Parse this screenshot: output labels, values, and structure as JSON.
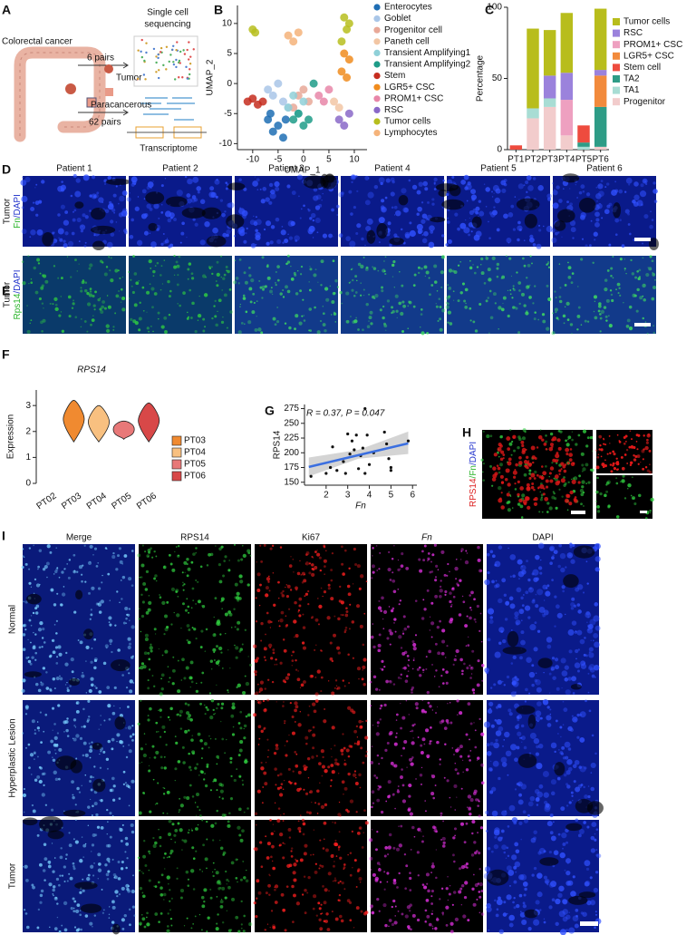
{
  "panel_labels": [
    "A",
    "B",
    "C",
    "D",
    "E",
    "F",
    "G",
    "H",
    "I"
  ],
  "panel_a": {
    "title": "Colorectal cancer",
    "sequencing": [
      "Single cell",
      "sequencing"
    ],
    "pairs_6": "6 pairs",
    "tumor": "Tumor",
    "paracancerous": "Paracancerous",
    "pairs_62": "62 pairs",
    "transcriptome": "Transcriptome"
  },
  "chart_data": [
    {
      "type": "scatter",
      "xlabel": "UMAP_1",
      "ylabel": "UMAP_2",
      "xlim": [
        -13,
        12.5
      ],
      "ylim": [
        -11,
        13
      ],
      "xticks": [
        -10,
        -5,
        0,
        5,
        10
      ],
      "yticks": [
        -10,
        -5,
        0,
        5,
        10
      ],
      "series": [
        {
          "name": "Enterocytes",
          "color": "#1f6eb4",
          "x": [
            -7,
            -6,
            -5,
            -4,
            -6.5,
            -3.5
          ],
          "y": [
            -6,
            -8,
            -7,
            -9,
            -5,
            -6
          ]
        },
        {
          "name": "Goblet",
          "color": "#a9c6e8",
          "x": [
            -6,
            -5,
            -4,
            -7,
            -3
          ],
          "y": [
            -2,
            0,
            -3,
            -1,
            -4
          ]
        },
        {
          "name": "Progenitor cell",
          "color": "#e8a898",
          "x": [
            -1,
            0,
            1,
            -2
          ],
          "y": [
            -2,
            -1,
            -3,
            -4
          ]
        },
        {
          "name": "Paneth cell",
          "color": "#f2c6a4",
          "x": [
            6,
            7
          ],
          "y": [
            -3,
            -4
          ]
        },
        {
          "name": "Transient Amplifying1",
          "color": "#8fd0d8",
          "x": [
            -3,
            -2,
            -1,
            0
          ],
          "y": [
            -4,
            -2,
            -5,
            -3
          ]
        },
        {
          "name": "Transient Amplifying2",
          "color": "#1f9c88",
          "x": [
            -2,
            -1,
            0,
            1,
            2
          ],
          "y": [
            -6,
            -5,
            -7,
            -6,
            0
          ]
        },
        {
          "name": "Stem",
          "color": "#c62d1f",
          "x": [
            -11,
            -10,
            -9,
            -8
          ],
          "y": [
            -3,
            -2.5,
            -3.5,
            -3
          ]
        },
        {
          "name": "LGR5+ CSC",
          "color": "#f08c1e",
          "x": [
            8,
            9,
            7.5,
            8.5
          ],
          "y": [
            5,
            4,
            2,
            1
          ]
        },
        {
          "name": "PROM1+ CSC",
          "color": "#e886a8",
          "x": [
            3,
            4,
            5
          ],
          "y": [
            -2,
            -3,
            -1
          ]
        },
        {
          "name": "RSC",
          "color": "#8a68c8",
          "x": [
            7,
            8,
            9
          ],
          "y": [
            -6,
            -7,
            -5
          ]
        },
        {
          "name": "Tumor cells",
          "color": "#b7be1e",
          "x": [
            -10,
            -9.5,
            8,
            8.5,
            7.5,
            9
          ],
          "y": [
            9,
            8.5,
            11,
            9,
            7,
            10
          ]
        },
        {
          "name": "Lymphocytes",
          "color": "#f5b37a",
          "x": [
            -3,
            -2,
            -1
          ],
          "y": [
            8,
            7,
            8.5
          ]
        }
      ]
    },
    {
      "type": "bar",
      "stacked": true,
      "ylabel": "Percentage",
      "categories": [
        "PT1",
        "PT2",
        "PT3",
        "PT4",
        "PT5",
        "PT6"
      ],
      "ylim": [
        0,
        100
      ],
      "yticks": [
        0,
        50,
        100
      ],
      "series": [
        {
          "name": "Progenitor",
          "color": "#f2cccc",
          "values": [
            0,
            22,
            30,
            10,
            0,
            2
          ]
        },
        {
          "name": "TA1",
          "color": "#a8ddd4",
          "values": [
            0,
            7,
            6,
            0,
            2,
            0
          ]
        },
        {
          "name": "TA2",
          "color": "#2e9c86",
          "values": [
            0,
            0,
            0,
            0,
            3,
            28
          ]
        },
        {
          "name": "Stem cell",
          "color": "#ee4b3e",
          "values": [
            3,
            0,
            0,
            0,
            12,
            0
          ]
        },
        {
          "name": "LGR5+ CSC",
          "color": "#f28a3c",
          "values": [
            0,
            0,
            0,
            0,
            0,
            22
          ]
        },
        {
          "name": "PROM1+ CSC",
          "color": "#eea0c0",
          "values": [
            0,
            0,
            0,
            25,
            0,
            0
          ]
        },
        {
          "name": "RSC",
          "color": "#9b82dc",
          "values": [
            0,
            0,
            16,
            19,
            0,
            4
          ]
        },
        {
          "name": "Tumor cells",
          "color": "#b8bd1c",
          "values": [
            0,
            56,
            32,
            42,
            0,
            43
          ]
        }
      ]
    },
    {
      "type": "violin",
      "title": "RPS14",
      "ylabel": "Expression",
      "categories": [
        "PT02",
        "PT03",
        "PT04",
        "PT05",
        "PT06"
      ],
      "ylim": [
        0,
        3.6
      ],
      "yticks": [
        0,
        1,
        2,
        3
      ],
      "low": [
        null,
        1.6,
        1.6,
        1.7,
        1.6
      ],
      "high": [
        null,
        3.2,
        3.0,
        2.4,
        3.1
      ],
      "series": [
        {
          "name": "PT03",
          "color": "#f08a30"
        },
        {
          "name": "PT04",
          "color": "#f8c080"
        },
        {
          "name": "PT05",
          "color": "#e87878"
        },
        {
          "name": "PT06",
          "color": "#d84848"
        }
      ]
    },
    {
      "type": "scatter",
      "annotation": "R = 0.37, P = 0.047",
      "xlabel": "Fn",
      "ylabel": "RPS14",
      "xlim": [
        1,
        6.2
      ],
      "ylim": [
        145,
        282
      ],
      "xticks": [
        2,
        3,
        4,
        5,
        6
      ],
      "yticks": [
        150,
        175,
        200,
        225,
        250,
        275
      ],
      "series": [
        {
          "color": "#111111",
          "x": [
            1.3,
            2,
            2.2,
            2.3,
            2.5,
            2.8,
            2.9,
            3,
            3.1,
            3.2,
            3.3,
            3.4,
            3.5,
            3.6,
            3.8,
            3.7,
            3.8,
            3.9,
            4,
            4.2,
            4.7,
            4.8,
            4.9,
            5,
            5,
            5.8
          ],
          "y": [
            160,
            165,
            175,
            210,
            170,
            185,
            165,
            232,
            198,
            220,
            205,
            230,
            173,
            195,
            165,
            208,
            275,
            230,
            180,
            200,
            235,
            215,
            190,
            170,
            175,
            220
          ]
        }
      ],
      "fit": {
        "color": "#3b6fe0",
        "x": [
          1.2,
          5.8
        ],
        "y": [
          176,
          216
        ]
      },
      "band": {
        "x": [
          1.2,
          3.5,
          5.8
        ],
        "low": [
          160,
          190,
          198
        ],
        "high": [
          192,
          205,
          236
        ]
      }
    }
  ],
  "panel_d": {
    "columns": [
      "Patient 1",
      "Patient 2",
      "Patient 3",
      "Patient 4",
      "Patient 5",
      "Patient 6"
    ],
    "row_label": "Tumor",
    "stain": [
      {
        "text": "Fn",
        "color": "#2ab52a"
      },
      {
        "text": "/DAPI",
        "color": "#2233cc"
      }
    ]
  },
  "panel_e": {
    "row_label": "Tumor",
    "stain": [
      {
        "text": "Rps14",
        "color": "#2ab52a"
      },
      {
        "text": "/DAPI",
        "color": "#2233cc"
      }
    ]
  },
  "panel_h": {
    "stain": [
      {
        "text": "RPS14",
        "color": "#dd2222"
      },
      {
        "text": "/",
        "color": "#2ab52a"
      },
      {
        "text": "Fn",
        "color": "#2ab52a"
      },
      {
        "text": "/DAPI",
        "color": "#2233cc"
      }
    ]
  },
  "panel_i": {
    "columns": [
      {
        "text": "Merge",
        "color": "#111111"
      },
      {
        "text": "RPS14",
        "color": "#22bb22"
      },
      {
        "text": "Ki67",
        "color": "#dd2222"
      },
      {
        "text": "Fn",
        "color": "#cc22cc"
      },
      {
        "text": "DAPI",
        "color": "#2233cc"
      }
    ],
    "rows": [
      "Normal",
      "Hyperplastic Lesion",
      "Tumor"
    ]
  }
}
